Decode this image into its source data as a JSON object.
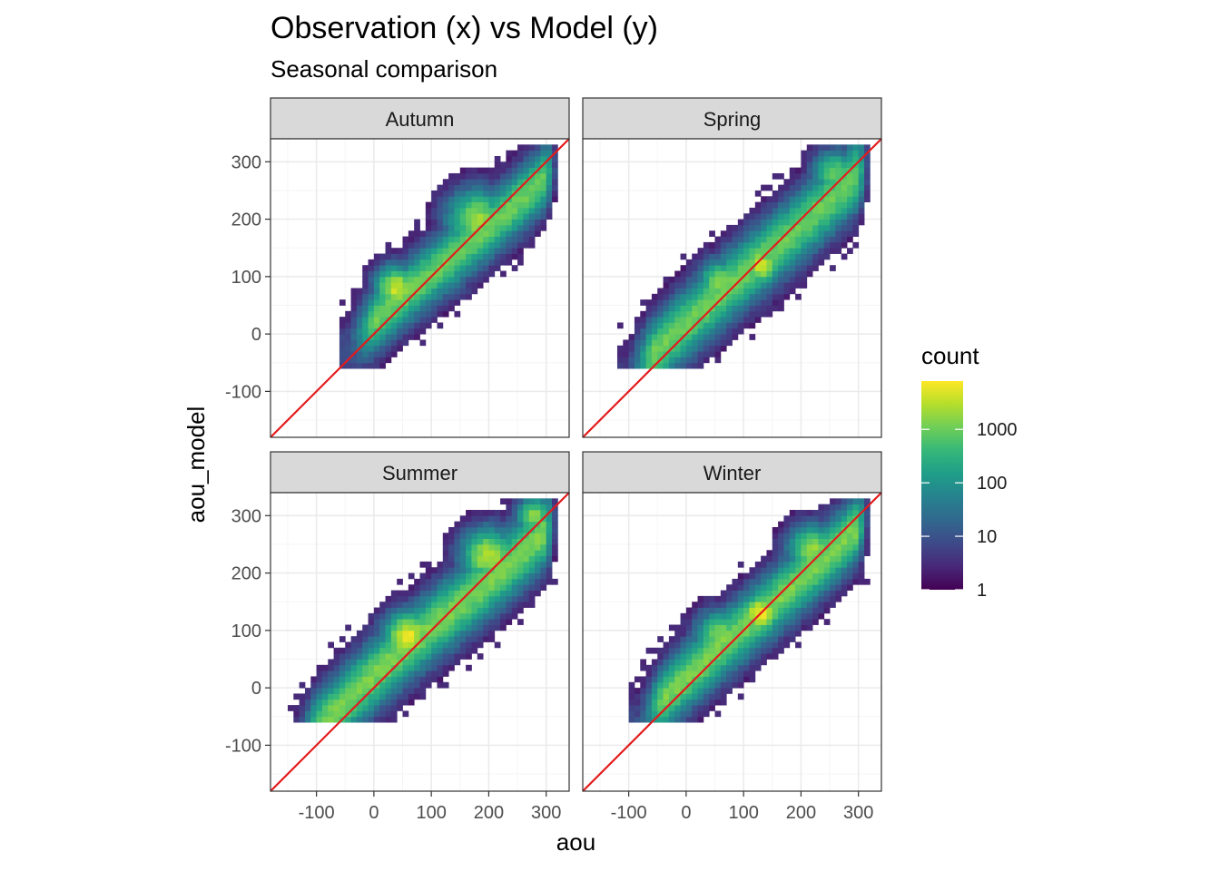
{
  "chart_data": {
    "type": "heatmap",
    "title": "Observation (x) vs Model (y)",
    "subtitle": "Seasonal comparison",
    "xlabel": "aou",
    "ylabel": "aou_model",
    "xlim": [
      -180,
      340
    ],
    "ylim": [
      -180,
      340
    ],
    "x_ticks": [
      -100,
      0,
      100,
      200,
      300
    ],
    "y_ticks": [
      -100,
      0,
      100,
      200,
      300
    ],
    "x_tick_labels": [
      "-100",
      "0",
      "100",
      "200",
      "300"
    ],
    "y_tick_labels": [
      "-100",
      "0",
      "100",
      "200",
      "300"
    ],
    "grid": true,
    "identity_line": {
      "slope": 1,
      "intercept": 0,
      "color": "#e31a1c"
    },
    "bin_width": 10,
    "panels": [
      {
        "name": "Autumn",
        "ridge": {
          "x_min": -60,
          "x_max": 320,
          "half_width": 62,
          "peak_log": 3.0
        },
        "blobs": [
          {
            "x": 40,
            "y": 80,
            "r": 45,
            "peak_log": 3.6
          },
          {
            "x": 180,
            "y": 200,
            "r": 60,
            "peak_log": 3.3
          },
          {
            "x": 120,
            "y": 120,
            "r": 50,
            "peak_log": 3.0
          }
        ],
        "offset": 25
      },
      {
        "name": "Spring",
        "ridge": {
          "x_min": -120,
          "x_max": 320,
          "half_width": 70,
          "peak_log": 3.0
        },
        "blobs": [
          {
            "x": 130,
            "y": 120,
            "r": 40,
            "peak_log": 3.6
          },
          {
            "x": 60,
            "y": 90,
            "r": 45,
            "peak_log": 3.2
          },
          {
            "x": 260,
            "y": 280,
            "r": 45,
            "peak_log": 3.0
          }
        ],
        "offset": 20
      },
      {
        "name": "Summer",
        "ridge": {
          "x_min": -160,
          "x_max": 320,
          "half_width": 70,
          "peak_log": 3.1
        },
        "blobs": [
          {
            "x": 60,
            "y": 90,
            "r": 50,
            "peak_log": 3.8
          },
          {
            "x": 200,
            "y": 230,
            "r": 55,
            "peak_log": 3.5
          },
          {
            "x": 280,
            "y": 300,
            "r": 35,
            "peak_log": 3.3
          }
        ],
        "offset": 25
      },
      {
        "name": "Winter",
        "ridge": {
          "x_min": -100,
          "x_max": 320,
          "half_width": 65,
          "peak_log": 3.1
        },
        "blobs": [
          {
            "x": 130,
            "y": 130,
            "r": 40,
            "peak_log": 3.9
          },
          {
            "x": 60,
            "y": 90,
            "r": 50,
            "peak_log": 3.2
          },
          {
            "x": 220,
            "y": 240,
            "r": 50,
            "peak_log": 3.3
          }
        ],
        "offset": 20
      }
    ],
    "legend": {
      "title": "count",
      "placement": "right",
      "scale": "log10",
      "range": [
        1,
        8000
      ],
      "breaks": [
        1,
        10,
        100,
        1000
      ],
      "labels": [
        "1",
        "10",
        "100",
        "1000"
      ],
      "palette": "viridis"
    }
  },
  "colors": {
    "strip_fill": "#d9d9d9",
    "grid_major": "#ebebeb",
    "grid_minor": "#f5f5f5",
    "identity_line": "#e31a1c",
    "axis_text": "#4d4d4d",
    "panel_border": "#333333"
  }
}
